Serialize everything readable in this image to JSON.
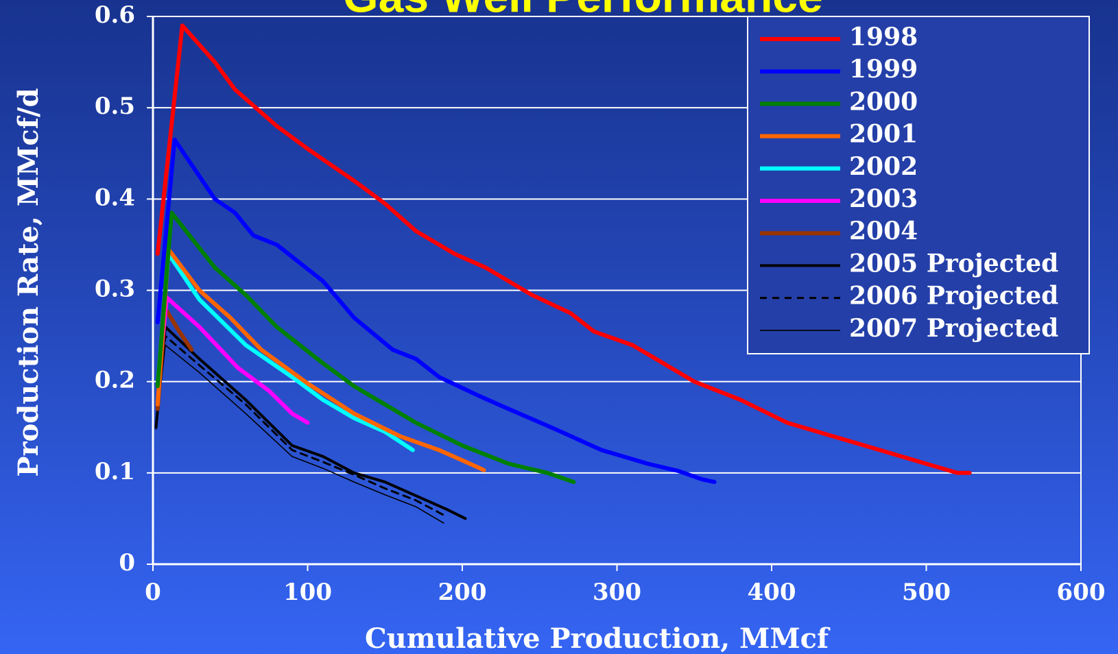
{
  "chart_data": {
    "type": "line",
    "title": "Gas Well Performance",
    "xlabel": "Cumulative Production, MMcf",
    "ylabel": "Production Rate, MMcf/d",
    "xlim": [
      0,
      600
    ],
    "ylim": [
      0,
      0.6
    ],
    "x_ticks": [
      "0",
      "100",
      "200",
      "300",
      "400",
      "500",
      "600"
    ],
    "y_ticks": [
      "0",
      "0.1",
      "0.2",
      "0.3",
      "0.4",
      "0.5",
      "0.6"
    ],
    "grid": "horizontal",
    "legend_position": "top-right",
    "series": [
      {
        "name": "1998",
        "color": "#ff0000",
        "style": "solid-thick",
        "points": [
          [
            3,
            0.34
          ],
          [
            19,
            0.59
          ],
          [
            40,
            0.55
          ],
          [
            53,
            0.52
          ],
          [
            80,
            0.48
          ],
          [
            100,
            0.455
          ],
          [
            130,
            0.42
          ],
          [
            150,
            0.395
          ],
          [
            170,
            0.365
          ],
          [
            195,
            0.34
          ],
          [
            215,
            0.325
          ],
          [
            245,
            0.295
          ],
          [
            270,
            0.275
          ],
          [
            285,
            0.255
          ],
          [
            310,
            0.24
          ],
          [
            330,
            0.22
          ],
          [
            350,
            0.2
          ],
          [
            380,
            0.18
          ],
          [
            410,
            0.155
          ],
          [
            440,
            0.14
          ],
          [
            470,
            0.125
          ],
          [
            500,
            0.11
          ],
          [
            520,
            0.1
          ],
          [
            528,
            0.1
          ]
        ]
      },
      {
        "name": "1999",
        "color": "#0000ff",
        "style": "solid-thick",
        "points": [
          [
            3,
            0.265
          ],
          [
            14,
            0.465
          ],
          [
            40,
            0.4
          ],
          [
            53,
            0.385
          ],
          [
            65,
            0.36
          ],
          [
            80,
            0.35
          ],
          [
            110,
            0.31
          ],
          [
            130,
            0.27
          ],
          [
            155,
            0.235
          ],
          [
            170,
            0.225
          ],
          [
            185,
            0.205
          ],
          [
            210,
            0.185
          ],
          [
            230,
            0.17
          ],
          [
            260,
            0.148
          ],
          [
            290,
            0.125
          ],
          [
            320,
            0.11
          ],
          [
            340,
            0.102
          ],
          [
            355,
            0.093
          ],
          [
            363,
            0.09
          ]
        ]
      },
      {
        "name": "2000",
        "color": "#008000",
        "style": "solid-thick",
        "points": [
          [
            3,
            0.195
          ],
          [
            12,
            0.385
          ],
          [
            40,
            0.325
          ],
          [
            60,
            0.295
          ],
          [
            80,
            0.26
          ],
          [
            110,
            0.22
          ],
          [
            130,
            0.195
          ],
          [
            150,
            0.175
          ],
          [
            170,
            0.155
          ],
          [
            200,
            0.13
          ],
          [
            230,
            0.11
          ],
          [
            255,
            0.1
          ],
          [
            272,
            0.09
          ]
        ]
      },
      {
        "name": "2001",
        "color": "#ff6600",
        "style": "solid-thick",
        "points": [
          [
            3,
            0.175
          ],
          [
            10,
            0.345
          ],
          [
            30,
            0.3
          ],
          [
            50,
            0.27
          ],
          [
            70,
            0.235
          ],
          [
            100,
            0.198
          ],
          [
            130,
            0.165
          ],
          [
            160,
            0.14
          ],
          [
            185,
            0.125
          ],
          [
            205,
            0.11
          ],
          [
            214,
            0.103
          ]
        ]
      },
      {
        "name": "2002",
        "color": "#00ffff",
        "style": "solid-thick",
        "points": [
          [
            3,
            0.195
          ],
          [
            10,
            0.34
          ],
          [
            30,
            0.29
          ],
          [
            60,
            0.24
          ],
          [
            90,
            0.205
          ],
          [
            110,
            0.18
          ],
          [
            130,
            0.16
          ],
          [
            150,
            0.145
          ],
          [
            168,
            0.125
          ]
        ]
      },
      {
        "name": "2003",
        "color": "#ff00ff",
        "style": "solid-thick",
        "points": [
          [
            3,
            0.195
          ],
          [
            9,
            0.292
          ],
          [
            30,
            0.26
          ],
          [
            55,
            0.215
          ],
          [
            75,
            0.19
          ],
          [
            90,
            0.165
          ],
          [
            100,
            0.155
          ]
        ]
      },
      {
        "name": "2004",
        "color": "#993300",
        "style": "solid-thick",
        "points": [
          [
            3,
            0.17
          ],
          [
            8,
            0.28
          ],
          [
            17,
            0.255
          ],
          [
            25,
            0.235
          ]
        ]
      },
      {
        "name": "2005 Projected",
        "color": "#000000",
        "style": "solid",
        "points": [
          [
            2,
            0.15
          ],
          [
            8,
            0.26
          ],
          [
            30,
            0.225
          ],
          [
            60,
            0.18
          ],
          [
            90,
            0.13
          ],
          [
            110,
            0.118
          ],
          [
            130,
            0.1
          ],
          [
            150,
            0.09
          ],
          [
            170,
            0.075
          ],
          [
            190,
            0.06
          ],
          [
            202,
            0.05
          ]
        ]
      },
      {
        "name": "2006 Projected",
        "color": "#000000",
        "style": "dashed",
        "points": [
          [
            2,
            0.15
          ],
          [
            8,
            0.25
          ],
          [
            30,
            0.218
          ],
          [
            60,
            0.175
          ],
          [
            90,
            0.125
          ],
          [
            110,
            0.112
          ],
          [
            130,
            0.098
          ],
          [
            150,
            0.083
          ],
          [
            170,
            0.07
          ],
          [
            190,
            0.052
          ]
        ]
      },
      {
        "name": "2007 Projected",
        "color": "#000000",
        "style": "thin",
        "points": [
          [
            2,
            0.148
          ],
          [
            8,
            0.24
          ],
          [
            30,
            0.21
          ],
          [
            60,
            0.165
          ],
          [
            90,
            0.118
          ],
          [
            110,
            0.105
          ],
          [
            130,
            0.09
          ],
          [
            150,
            0.076
          ],
          [
            170,
            0.063
          ],
          [
            188,
            0.045
          ]
        ]
      }
    ]
  }
}
